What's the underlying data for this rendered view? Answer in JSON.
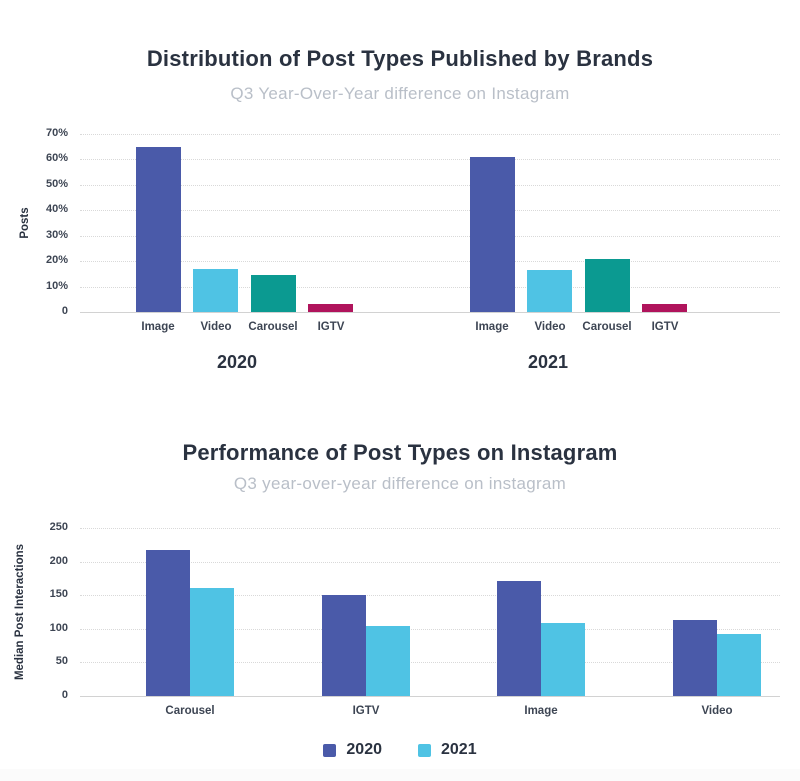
{
  "colors": {
    "title_text": "#2a3240",
    "subtitle_text": "#b9bfc8",
    "axis_text": "#3d4553",
    "gridline": "#d9d9d9",
    "indigo": "#4a5aa9",
    "cyan": "#4fc3e4",
    "teal": "#0b9a91",
    "magenta": "#b0145c"
  },
  "chart_data": [
    {
      "type": "bar",
      "title": "Distribution of Post Types Published by Brands",
      "subtitle": "Q3 Year-Over-Year difference on Instagram",
      "ylabel": "Posts",
      "ylim": [
        0,
        70
      ],
      "ytick_labels": [
        "70%",
        "60%",
        "50%",
        "40%",
        "30%",
        "20%",
        "10%",
        "0"
      ],
      "grid": true,
      "legend_position": "none",
      "categories": [
        "Image",
        "Video",
        "Carousel",
        "IGTV"
      ],
      "bar_colors": {
        "Image": "#4a5aa9",
        "Video": "#4fc3e4",
        "Carousel": "#0b9a91",
        "IGTV": "#b0145c"
      },
      "groups": [
        {
          "label": "2020",
          "values": [
            65,
            17,
            14.5,
            3
          ]
        },
        {
          "label": "2021",
          "values": [
            61,
            16.5,
            21,
            3
          ]
        }
      ]
    },
    {
      "type": "bar",
      "title": "Performance of Post Types on Instagram",
      "subtitle": "Q3 year-over-year difference on instagram",
      "ylabel": "Median Post Interactions",
      "ylim": [
        0,
        250
      ],
      "ytick_labels": [
        "250",
        "200",
        "150",
        "100",
        "50",
        "0"
      ],
      "grid": true,
      "legend_position": "bottom",
      "categories": [
        "Carousel",
        "IGTV",
        "Image",
        "Video"
      ],
      "series": [
        {
          "name": "2020",
          "color": "#4a5aa9",
          "values": [
            217,
            150,
            171,
            113
          ]
        },
        {
          "name": "2021",
          "color": "#4fc3e4",
          "values": [
            160,
            104,
            108,
            92
          ]
        }
      ]
    }
  ]
}
